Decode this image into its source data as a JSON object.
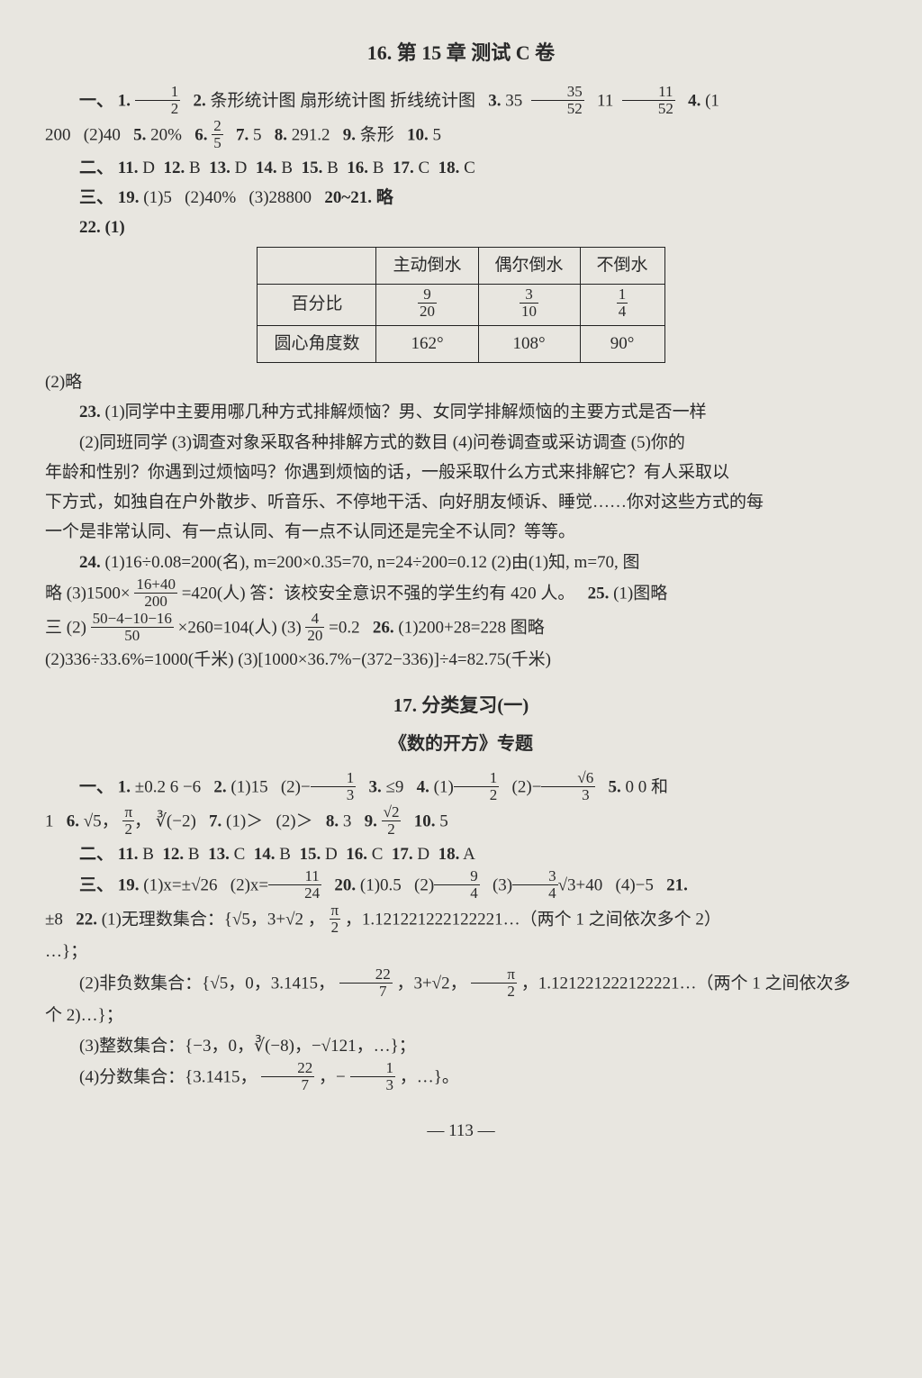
{
  "colors": {
    "page_bg": "#e8e6e0",
    "text": "#2a2a2a",
    "table_border": "#222222"
  },
  "typography": {
    "body_size_pt": 14,
    "title_size_pt": 16,
    "font_family": "SimSun / Songti (serif)"
  },
  "page_number": "— 113 —",
  "section16": {
    "title": "16. 第 15 章  测试 C 卷",
    "part1_label": "一、",
    "q1": {
      "label": "1.",
      "value_frac": {
        "num": "1",
        "den": "2"
      }
    },
    "q2": {
      "label": "2.",
      "text": "条形统计图  扇形统计图  折线统计图"
    },
    "q3": {
      "label": "3.",
      "a": "35",
      "frac1": {
        "num": "35",
        "den": "52"
      },
      "b": "11",
      "frac2": {
        "num": "11",
        "den": "52"
      }
    },
    "q4": {
      "label": "4.",
      "prefix": "(1",
      "cont_200": "200",
      "part2": "(2)40"
    },
    "q5": {
      "label": "5.",
      "text": "20%"
    },
    "q6": {
      "label": "6.",
      "frac": {
        "num": "2",
        "den": "5"
      }
    },
    "q7": {
      "label": "7.",
      "text": "5"
    },
    "q8": {
      "label": "8.",
      "text": "291.2"
    },
    "q9": {
      "label": "9.",
      "text": "条形"
    },
    "q10": {
      "label": "10.",
      "text": "5"
    },
    "part2_label": "二、",
    "mcq": [
      {
        "n": "11.",
        "a": "D"
      },
      {
        "n": "12.",
        "a": "B"
      },
      {
        "n": "13.",
        "a": "D"
      },
      {
        "n": "14.",
        "a": "B"
      },
      {
        "n": "15.",
        "a": "B"
      },
      {
        "n": "16.",
        "a": "B"
      },
      {
        "n": "17.",
        "a": "C"
      },
      {
        "n": "18.",
        "a": "C"
      }
    ],
    "part3_label": "三、",
    "q19": {
      "label": "19.",
      "p1": "(1)5",
      "p2": "(2)40%",
      "p3": "(3)28800",
      "tail": "20~21. 略"
    },
    "q22_label": "22. (1)",
    "table": {
      "columns": [
        "",
        "主动倒水",
        "偶尔倒水",
        "不倒水"
      ],
      "rows": [
        {
          "label": "百分比",
          "cells_frac": [
            {
              "num": "9",
              "den": "20"
            },
            {
              "num": "3",
              "den": "10"
            },
            {
              "num": "1",
              "den": "4"
            }
          ]
        },
        {
          "label": "圆心角度数",
          "cells": [
            "162°",
            "108°",
            "90°"
          ]
        }
      ]
    },
    "q22_2": "(2)略",
    "q23": {
      "label": "23.",
      "line1": "(1)同学中主要用哪几种方式排解烦恼？男、女同学排解烦恼的主要方式是否一样",
      "line2": "(2)同班同学  (3)调查对象采取各种排解方式的数目  (4)问卷调查或采访调查  (5)你的",
      "line3": "年龄和性别？你遇到过烦恼吗？你遇到烦恼的话，一般采取什么方式来排解它？有人采取以",
      "line4": "下方式，如独自在户外散步、听音乐、不停地干活、向好朋友倾诉、睡觉……你对这些方式的每",
      "line5": "一个是非常认同、有一点认同、有一点不认同还是完全不认同？等等。"
    },
    "q24": {
      "label": "24.",
      "p1": "(1)16÷0.08=200(名), m=200×0.35=70, n=24÷200=0.12  (2)由(1)知, m=70, 图",
      "p2_prefix": "略  (3)1500×",
      "p2_frac": {
        "num": "16+40",
        "den": "200"
      },
      "p2_suffix": "=420(人)  答：该校安全意识不强的学生约有 420 人。"
    },
    "q25": {
      "label": "25.",
      "text": "(1)图略"
    },
    "q26pre": {
      "eq_head": "三  (2)",
      "frac": {
        "num": "50−4−10−16",
        "den": "50"
      },
      "mid": "×260=104(人)  (3)",
      "frac2": {
        "num": "4",
        "den": "20"
      },
      "tail": "=0.2"
    },
    "q26": {
      "label": "26.",
      "text": "(1)200+28=228  图略"
    },
    "q26b": "(2)336÷33.6%=1000(千米)  (3)[1000×36.7%−(372−336)]÷4=82.75(千米)"
  },
  "section17": {
    "title": "17. 分类复习(一)",
    "subtitle": "《数的开方》专题",
    "part1_label": "一、",
    "q1": {
      "label": "1.",
      "text": "±0.2  6  −6"
    },
    "q2": {
      "label": "2.",
      "p1": "(1)15",
      "p2_prefix": "(2)−",
      "p2_frac": {
        "num": "1",
        "den": "3"
      }
    },
    "q3": {
      "label": "3.",
      "text": "≤9"
    },
    "q4": {
      "label": "4.",
      "p1_prefix": "(1)",
      "p1_frac": {
        "num": "1",
        "den": "2"
      },
      "p2_prefix": "(2)−",
      "p2_frac": {
        "num": "√6",
        "den": "3"
      }
    },
    "q5": {
      "label": "5.",
      "text": "0  0 和"
    },
    "line2_lead": "1",
    "q6": {
      "label": "6.",
      "a": "√5",
      "b_frac": {
        "num": "π",
        "den": "2"
      },
      "c": "∛(−2)"
    },
    "q7": {
      "label": "7.",
      "p1": "(1)＞",
      "p2": "(2)＞"
    },
    "q8": {
      "label": "8.",
      "text": "3"
    },
    "q9": {
      "label": "9.",
      "frac": {
        "num": "√2",
        "den": "2"
      }
    },
    "q10": {
      "label": "10.",
      "text": "5"
    },
    "part2_label": "二、",
    "mcq": [
      {
        "n": "11.",
        "a": "B"
      },
      {
        "n": "12.",
        "a": "B"
      },
      {
        "n": "13.",
        "a": "C"
      },
      {
        "n": "14.",
        "a": "B"
      },
      {
        "n": "15.",
        "a": "D"
      },
      {
        "n": "16.",
        "a": "C"
      },
      {
        "n": "17.",
        "a": "D"
      },
      {
        "n": "18.",
        "a": "A"
      }
    ],
    "part3_label": "三、",
    "q19": {
      "label": "19.",
      "p1": "(1)x=±√26",
      "p2_prefix": "(2)x=",
      "p2_frac": {
        "num": "11",
        "den": "24"
      }
    },
    "q20": {
      "label": "20.",
      "p1": "(1)0.5",
      "p2_prefix": "(2)",
      "p2_frac": {
        "num": "9",
        "den": "4"
      },
      "p3_prefix": "(3)",
      "p3_frac": {
        "num": "3",
        "den": "4"
      },
      "p3_suffix": "√3+40",
      "p4": "(4)−5"
    },
    "q21_tail": "21.",
    "q22": {
      "lead": "±8",
      "label": "22.",
      "set1_head": "(1)无理数集合：{√5，3+√2 ，",
      "set1_frac": {
        "num": "π",
        "den": "2"
      },
      "set1_tail": "，1.121221222122221…（两个 1 之间依次多个 2）",
      "set1_end": "…}；",
      "set2_head": "(2)非负数集合：{√5，0，3.1415，",
      "set2_frac1": {
        "num": "22",
        "den": "7"
      },
      "set2_mid": "，3+√2，",
      "set2_frac2": {
        "num": "π",
        "den": "2"
      },
      "set2_tail": "，1.121221222122221…（两个 1 之间依次多",
      "set2_end": "个 2)…}；",
      "set3": "(3)整数集合：{−3，0，∛(−8)，−√121，…}；",
      "set4_head": "(4)分数集合：{3.1415，",
      "set4_frac1": {
        "num": "22",
        "den": "7"
      },
      "set4_mid": "，−",
      "set4_frac2": {
        "num": "1",
        "den": "3"
      },
      "set4_tail": "，…}。"
    }
  }
}
